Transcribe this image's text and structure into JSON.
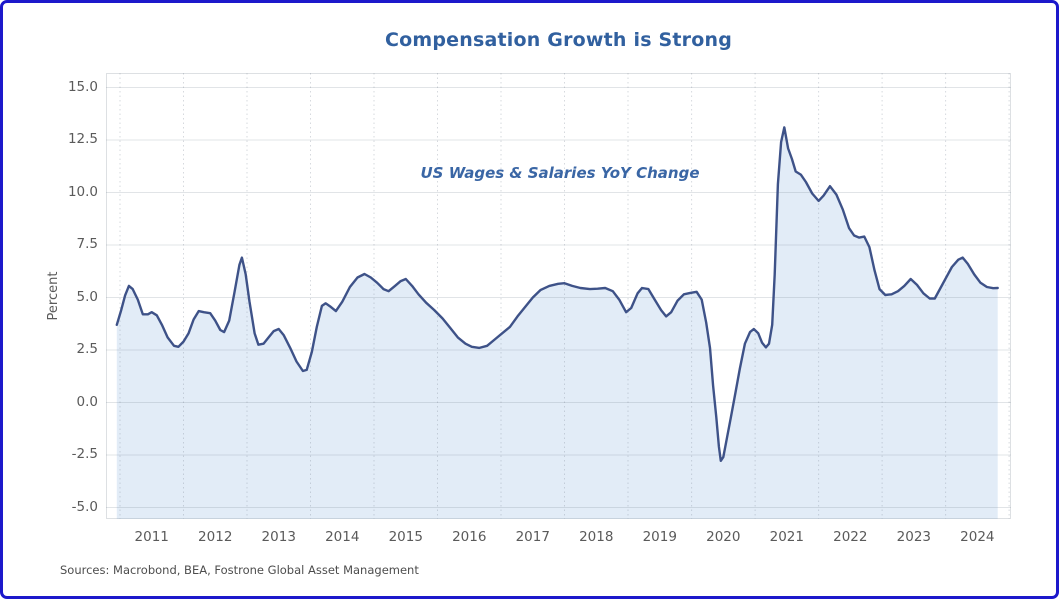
{
  "frame": {
    "border_color": "#1c18cb",
    "background_color": "#ffffff"
  },
  "title": "Compensation Growth is Strong",
  "annotation": "US Wages & Salaries YoY Change",
  "source_note": "Sources: Macrobond, BEA, Fostrone Global Asset Management",
  "y_axis": {
    "label": "Percent",
    "tick_labels": [
      "15.0",
      "12.5",
      "10.0",
      "7.5",
      "5.0",
      "2.5",
      "0.0",
      "-2.5",
      "-5.0"
    ],
    "tick_values": [
      15,
      12.5,
      10,
      7.5,
      5,
      2.5,
      0,
      -2.5,
      -5
    ]
  },
  "x_axis": {
    "tick_labels": [
      "2011",
      "2012",
      "2013",
      "2014",
      "2015",
      "2016",
      "2017",
      "2018",
      "2019",
      "2020",
      "2021",
      "2022",
      "2023",
      "2024"
    ],
    "tick_values": [
      2011,
      2012,
      2013,
      2014,
      2015,
      2016,
      2017,
      2018,
      2019,
      2020,
      2021,
      2022,
      2023,
      2024
    ],
    "gridline_years": [
      2011,
      2012,
      2013,
      2014,
      2015,
      2016,
      2017,
      2018,
      2019,
      2020,
      2021,
      2022,
      2023,
      2024,
      2025
    ]
  },
  "chart_data": {
    "type": "area",
    "title": "Compensation Growth is Strong",
    "series_label": "US Wages & Salaries YoY Change",
    "xlabel": "",
    "ylabel": "Percent",
    "x_domain": [
      2010.78,
      2025.03
    ],
    "y_domain": [
      -5.55,
      15.69
    ],
    "ylim": [
      -5,
      15
    ],
    "grid": true,
    "legend_position": "none",
    "line_color": "#3e5288",
    "fill_color": "#e2ecf7",
    "points": [
      [
        2010.95,
        3.7
      ],
      [
        2011.02,
        4.4
      ],
      [
        2011.08,
        5.1
      ],
      [
        2011.14,
        5.55
      ],
      [
        2011.2,
        5.4
      ],
      [
        2011.28,
        4.9
      ],
      [
        2011.36,
        4.2
      ],
      [
        2011.44,
        4.2
      ],
      [
        2011.5,
        4.3
      ],
      [
        2011.58,
        4.15
      ],
      [
        2011.66,
        3.7
      ],
      [
        2011.75,
        3.1
      ],
      [
        2011.85,
        2.7
      ],
      [
        2011.92,
        2.65
      ],
      [
        2012.0,
        2.9
      ],
      [
        2012.08,
        3.3
      ],
      [
        2012.16,
        3.95
      ],
      [
        2012.24,
        4.35
      ],
      [
        2012.32,
        4.3
      ],
      [
        2012.42,
        4.25
      ],
      [
        2012.5,
        3.9
      ],
      [
        2012.58,
        3.45
      ],
      [
        2012.64,
        3.35
      ],
      [
        2012.72,
        3.9
      ],
      [
        2012.8,
        5.2
      ],
      [
        2012.88,
        6.55
      ],
      [
        2012.92,
        6.9
      ],
      [
        2012.98,
        6.1
      ],
      [
        2013.04,
        4.8
      ],
      [
        2013.12,
        3.3
      ],
      [
        2013.18,
        2.75
      ],
      [
        2013.26,
        2.8
      ],
      [
        2013.34,
        3.1
      ],
      [
        2013.42,
        3.4
      ],
      [
        2013.5,
        3.5
      ],
      [
        2013.58,
        3.2
      ],
      [
        2013.68,
        2.6
      ],
      [
        2013.78,
        1.95
      ],
      [
        2013.88,
        1.5
      ],
      [
        2013.94,
        1.55
      ],
      [
        2014.02,
        2.4
      ],
      [
        2014.1,
        3.6
      ],
      [
        2014.18,
        4.6
      ],
      [
        2014.24,
        4.72
      ],
      [
        2014.32,
        4.55
      ],
      [
        2014.4,
        4.35
      ],
      [
        2014.5,
        4.8
      ],
      [
        2014.62,
        5.5
      ],
      [
        2014.74,
        5.95
      ],
      [
        2014.85,
        6.12
      ],
      [
        2014.95,
        5.95
      ],
      [
        2015.05,
        5.7
      ],
      [
        2015.15,
        5.4
      ],
      [
        2015.23,
        5.3
      ],
      [
        2015.33,
        5.55
      ],
      [
        2015.42,
        5.78
      ],
      [
        2015.5,
        5.88
      ],
      [
        2015.6,
        5.55
      ],
      [
        2015.7,
        5.15
      ],
      [
        2015.82,
        4.75
      ],
      [
        2015.95,
        4.4
      ],
      [
        2016.08,
        4.0
      ],
      [
        2016.2,
        3.55
      ],
      [
        2016.32,
        3.1
      ],
      [
        2016.44,
        2.8
      ],
      [
        2016.54,
        2.65
      ],
      [
        2016.66,
        2.6
      ],
      [
        2016.78,
        2.7
      ],
      [
        2016.9,
        3.0
      ],
      [
        2017.02,
        3.3
      ],
      [
        2017.14,
        3.6
      ],
      [
        2017.26,
        4.1
      ],
      [
        2017.38,
        4.55
      ],
      [
        2017.5,
        5.0
      ],
      [
        2017.62,
        5.35
      ],
      [
        2017.76,
        5.55
      ],
      [
        2017.9,
        5.65
      ],
      [
        2018.0,
        5.68
      ],
      [
        2018.12,
        5.55
      ],
      [
        2018.25,
        5.45
      ],
      [
        2018.4,
        5.4
      ],
      [
        2018.52,
        5.42
      ],
      [
        2018.64,
        5.45
      ],
      [
        2018.76,
        5.3
      ],
      [
        2018.86,
        4.9
      ],
      [
        2018.97,
        4.3
      ],
      [
        2019.05,
        4.5
      ],
      [
        2019.15,
        5.2
      ],
      [
        2019.22,
        5.45
      ],
      [
        2019.32,
        5.4
      ],
      [
        2019.42,
        4.9
      ],
      [
        2019.52,
        4.4
      ],
      [
        2019.6,
        4.1
      ],
      [
        2019.68,
        4.3
      ],
      [
        2019.78,
        4.85
      ],
      [
        2019.88,
        5.15
      ],
      [
        2019.98,
        5.22
      ],
      [
        2020.08,
        5.27
      ],
      [
        2020.16,
        4.9
      ],
      [
        2020.23,
        3.8
      ],
      [
        2020.29,
        2.6
      ],
      [
        2020.34,
        0.8
      ],
      [
        2020.39,
        -0.7
      ],
      [
        2020.43,
        -2.1
      ],
      [
        2020.46,
        -2.78
      ],
      [
        2020.5,
        -2.6
      ],
      [
        2020.55,
        -1.8
      ],
      [
        2020.62,
        -0.7
      ],
      [
        2020.69,
        0.45
      ],
      [
        2020.76,
        1.6
      ],
      [
        2020.84,
        2.8
      ],
      [
        2020.92,
        3.35
      ],
      [
        2020.98,
        3.5
      ],
      [
        2021.05,
        3.3
      ],
      [
        2021.11,
        2.85
      ],
      [
        2021.17,
        2.62
      ],
      [
        2021.22,
        2.8
      ],
      [
        2021.27,
        3.7
      ],
      [
        2021.31,
        6.1
      ],
      [
        2021.36,
        10.4
      ],
      [
        2021.41,
        12.4
      ],
      [
        2021.46,
        13.1
      ],
      [
        2021.52,
        12.1
      ],
      [
        2021.58,
        11.6
      ],
      [
        2021.64,
        11.0
      ],
      [
        2021.72,
        10.85
      ],
      [
        2021.8,
        10.5
      ],
      [
        2021.9,
        9.95
      ],
      [
        2022.0,
        9.6
      ],
      [
        2022.08,
        9.85
      ],
      [
        2022.18,
        10.3
      ],
      [
        2022.28,
        9.9
      ],
      [
        2022.38,
        9.2
      ],
      [
        2022.48,
        8.3
      ],
      [
        2022.56,
        7.95
      ],
      [
        2022.64,
        7.85
      ],
      [
        2022.72,
        7.9
      ],
      [
        2022.8,
        7.4
      ],
      [
        2022.88,
        6.3
      ],
      [
        2022.96,
        5.4
      ],
      [
        2023.05,
        5.12
      ],
      [
        2023.15,
        5.15
      ],
      [
        2023.25,
        5.3
      ],
      [
        2023.35,
        5.55
      ],
      [
        2023.45,
        5.88
      ],
      [
        2023.55,
        5.6
      ],
      [
        2023.65,
        5.2
      ],
      [
        2023.75,
        4.95
      ],
      [
        2023.83,
        4.95
      ],
      [
        2023.92,
        5.45
      ],
      [
        2024.0,
        5.9
      ],
      [
        2024.1,
        6.45
      ],
      [
        2024.2,
        6.8
      ],
      [
        2024.27,
        6.9
      ],
      [
        2024.35,
        6.6
      ],
      [
        2024.45,
        6.1
      ],
      [
        2024.55,
        5.7
      ],
      [
        2024.65,
        5.5
      ],
      [
        2024.75,
        5.44
      ],
      [
        2024.82,
        5.45
      ]
    ]
  }
}
